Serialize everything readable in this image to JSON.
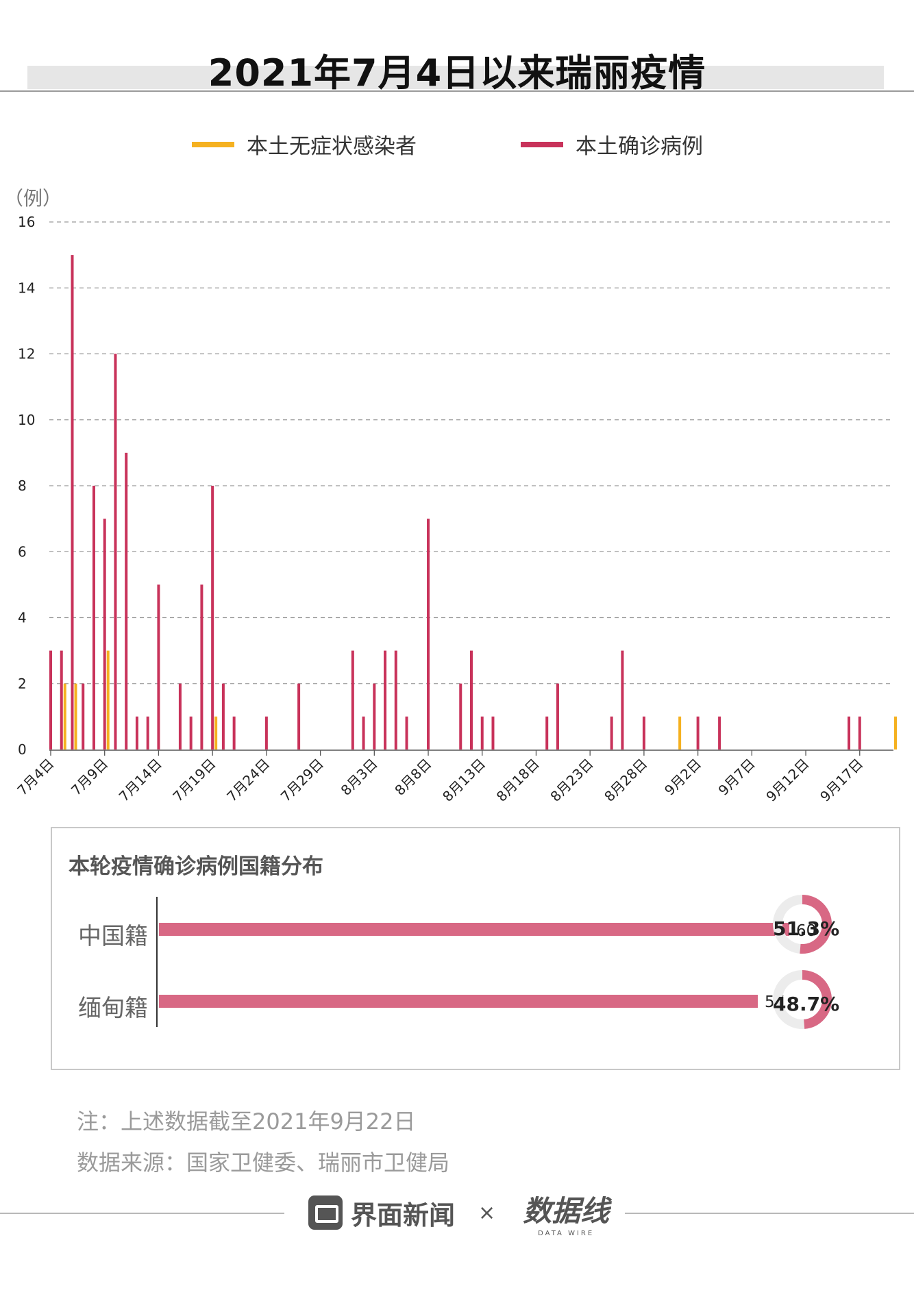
{
  "title": "2021年7月4日以来瑞丽疫情",
  "legend": [
    {
      "label": "本土无症状感染者",
      "color": "#f5b120"
    },
    {
      "label": "本土确诊病例",
      "color": "#c8325a"
    }
  ],
  "chart_data": {
    "type": "bar",
    "unit_label": "（例）",
    "ylim": [
      0,
      16
    ],
    "yticks": [
      0,
      2,
      4,
      6,
      8,
      10,
      12,
      14,
      16
    ],
    "grid": true,
    "x_tick_labels": [
      "7月4日",
      "7月9日",
      "7月14日",
      "7月19日",
      "7月24日",
      "7月29日",
      "8月3日",
      "8月8日",
      "8月13日",
      "8月18日",
      "8月23日",
      "8月28日",
      "9月2日",
      "9月7日",
      "9月12日",
      "9月17日"
    ],
    "series": [
      {
        "name": "本土确诊病例",
        "color": "#c8325a",
        "points": [
          {
            "date": "7月4日",
            "value": 3
          },
          {
            "date": "7月5日",
            "value": 3
          },
          {
            "date": "7月6日",
            "value": 15
          },
          {
            "date": "7月7日",
            "value": 2
          },
          {
            "date": "7月8日",
            "value": 8
          },
          {
            "date": "7月9日",
            "value": 7
          },
          {
            "date": "7月10日",
            "value": 12
          },
          {
            "date": "7月11日",
            "value": 9
          },
          {
            "date": "7月12日",
            "value": 1
          },
          {
            "date": "7月13日",
            "value": 1
          },
          {
            "date": "7月14日",
            "value": 5
          },
          {
            "date": "7月16日",
            "value": 2
          },
          {
            "date": "7月17日",
            "value": 1
          },
          {
            "date": "7月18日",
            "value": 5
          },
          {
            "date": "7月19日",
            "value": 8
          },
          {
            "date": "7月20日",
            "value": 2
          },
          {
            "date": "7月21日",
            "value": 1
          },
          {
            "date": "7月24日",
            "value": 1
          },
          {
            "date": "7月27日",
            "value": 2
          },
          {
            "date": "8月1日",
            "value": 3
          },
          {
            "date": "8月2日",
            "value": 1
          },
          {
            "date": "8月3日",
            "value": 2
          },
          {
            "date": "8月4日",
            "value": 3
          },
          {
            "date": "8月5日",
            "value": 3
          },
          {
            "date": "8月6日",
            "value": 1
          },
          {
            "date": "8月8日",
            "value": 7
          },
          {
            "date": "8月11日",
            "value": 2
          },
          {
            "date": "8月12日",
            "value": 3
          },
          {
            "date": "8月13日",
            "value": 1
          },
          {
            "date": "8月14日",
            "value": 1
          },
          {
            "date": "8月19日",
            "value": 1
          },
          {
            "date": "8月20日",
            "value": 2
          },
          {
            "date": "8月25日",
            "value": 1
          },
          {
            "date": "8月26日",
            "value": 3
          },
          {
            "date": "8月28日",
            "value": 1
          },
          {
            "date": "9月2日",
            "value": 1
          },
          {
            "date": "9月4日",
            "value": 1
          },
          {
            "date": "9月16日",
            "value": 1
          },
          {
            "date": "9月17日",
            "value": 1
          }
        ]
      },
      {
        "name": "本土无症状感染者",
        "color": "#f5b120",
        "points": [
          {
            "date": "7月5日",
            "value": 2
          },
          {
            "date": "7月6日",
            "value": 2
          },
          {
            "date": "7月9日",
            "value": 3
          },
          {
            "date": "7月19日",
            "value": 1
          },
          {
            "date": "8月31日",
            "value": 1
          },
          {
            "date": "9月20日",
            "value": 1
          }
        ]
      }
    ]
  },
  "nationality": {
    "title": "本轮疫情确诊病例国籍分布",
    "rows": [
      {
        "label": "中国籍",
        "value": 60,
        "value_text": "60",
        "pct": 51.3,
        "pct_text": "51.3%"
      },
      {
        "label": "缅甸籍",
        "value": 57,
        "value_text": "57",
        "pct": 48.7,
        "pct_text": "48.7%"
      }
    ],
    "bar_color": "#d86884",
    "donut_bg": "#ececec"
  },
  "notes": {
    "note": "注：上述数据截至2021年9月22日",
    "source": "数据来源：国家卫健委、瑞丽市卫健局"
  },
  "footer": {
    "brand1": "界面新闻",
    "times": "×",
    "brand2": "数据线",
    "brand2_sub": "DATA WIRE"
  }
}
